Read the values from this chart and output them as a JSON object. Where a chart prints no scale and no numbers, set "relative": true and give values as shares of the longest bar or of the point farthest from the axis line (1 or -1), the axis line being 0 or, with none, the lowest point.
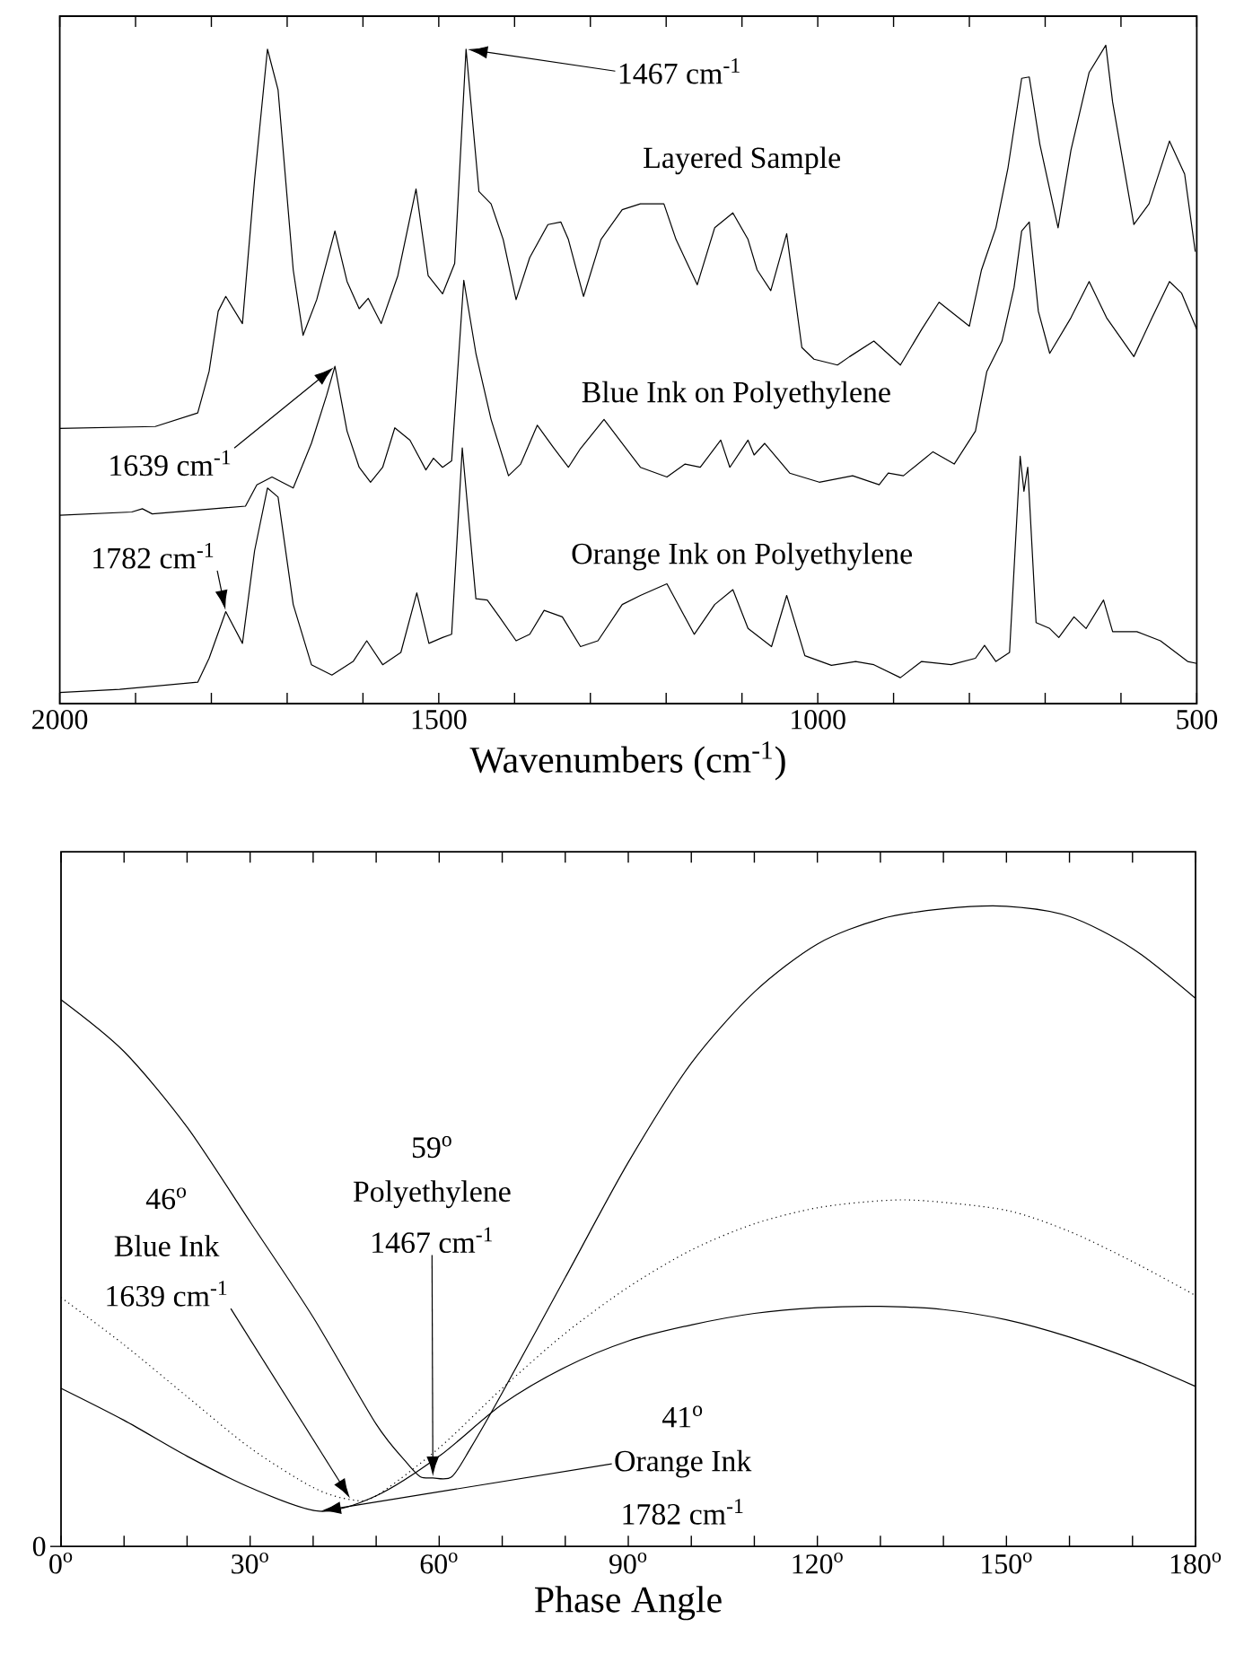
{
  "chart_data": [
    {
      "type": "line",
      "relative": true,
      "tick_labels": "x",
      "xlabel": "Wavenumbers (cm$^{-1}$)",
      "xlim": [
        2000,
        500
      ],
      "xticks": [
        2000,
        {
          "value": 1900,
          "label": null
        },
        {
          "value": 1800,
          "label": null
        },
        {
          "value": 1700,
          "label": null
        },
        {
          "value": 1600,
          "label": null
        },
        1500,
        {
          "value": 1400,
          "label": null
        },
        {
          "value": 1300,
          "label": null
        },
        {
          "value": 1200,
          "label": null
        },
        {
          "value": 1100,
          "label": null
        },
        1000,
        {
          "value": 900,
          "label": null
        },
        {
          "value": 800,
          "label": null
        },
        {
          "value": 700,
          "label": null
        },
        {
          "value": 600,
          "label": null
        },
        500
      ],
      "series": [
        {
          "name": "Layered Sample",
          "color": "#000000",
          "x": [
            2000,
            1874,
            1818,
            1803,
            1791,
            1781,
            1759,
            1743,
            1726,
            1712,
            1692,
            1679,
            1661,
            1637,
            1621,
            1605,
            1593,
            1576,
            1554,
            1530,
            1514,
            1495,
            1479,
            1464,
            1447,
            1431,
            1415,
            1398,
            1380,
            1356,
            1339,
            1329,
            1309,
            1286,
            1258,
            1234,
            1203,
            1187,
            1159,
            1136,
            1112,
            1092,
            1080,
            1062,
            1041,
            1021,
            1005,
            974,
            958,
            926,
            891,
            863,
            840,
            800,
            784,
            765,
            749,
            731,
            721,
            707,
            683,
            666,
            642,
            620,
            611,
            583,
            563,
            536,
            516,
            502
          ],
          "values": [
            0.408,
            0.411,
            0.432,
            0.496,
            0.589,
            0.612,
            0.57,
            0.792,
            0.994,
            0.931,
            0.653,
            0.552,
            0.607,
            0.713,
            0.635,
            0.593,
            0.609,
            0.57,
            0.644,
            0.778,
            0.644,
            0.616,
            0.663,
            0.994,
            0.774,
            0.755,
            0.7,
            0.607,
            0.672,
            0.723,
            0.727,
            0.7,
            0.612,
            0.7,
            0.746,
            0.755,
            0.755,
            0.7,
            0.63,
            0.718,
            0.741,
            0.7,
            0.653,
            0.621,
            0.709,
            0.533,
            0.515,
            0.506,
            0.519,
            0.543,
            0.506,
            0.561,
            0.603,
            0.566,
            0.653,
            0.718,
            0.811,
            0.949,
            0.951,
            0.847,
            0.718,
            0.838,
            0.958,
            1.0,
            0.912,
            0.723,
            0.755,
            0.852,
            0.801,
            0.681
          ]
        },
        {
          "name": "Blue Ink on Polyethylene",
          "color": "#000000",
          "x": [
            2000,
            1905,
            1891,
            1878,
            1755,
            1740,
            1720,
            1692,
            1668,
            1648,
            1637,
            1621,
            1605,
            1590,
            1574,
            1558,
            1538,
            1517,
            1507,
            1495,
            1483,
            1467,
            1451,
            1431,
            1408,
            1392,
            1370,
            1349,
            1329,
            1313,
            1282,
            1258,
            1234,
            1199,
            1175,
            1155,
            1128,
            1116,
            1092,
            1084,
            1070,
            1037,
            998,
            954,
            919,
            907,
            887,
            848,
            820,
            792,
            777,
            757,
            741,
            731,
            721,
            709,
            694,
            666,
            642,
            619,
            583,
            559,
            536,
            520,
            500
          ],
          "values": [
            0.274,
            0.279,
            0.284,
            0.276,
            0.288,
            0.321,
            0.333,
            0.316,
            0.385,
            0.459,
            0.504,
            0.404,
            0.348,
            0.325,
            0.348,
            0.409,
            0.39,
            0.344,
            0.362,
            0.348,
            0.358,
            0.637,
            0.524,
            0.422,
            0.335,
            0.353,
            0.413,
            0.379,
            0.348,
            0.377,
            0.422,
            0.385,
            0.348,
            0.333,
            0.353,
            0.348,
            0.39,
            0.348,
            0.39,
            0.367,
            0.385,
            0.339,
            0.325,
            0.335,
            0.321,
            0.339,
            0.335,
            0.372,
            0.353,
            0.404,
            0.496,
            0.543,
            0.626,
            0.713,
            0.727,
            0.589,
            0.524,
            0.579,
            0.635,
            0.579,
            0.519,
            0.579,
            0.635,
            0.617,
            0.561
          ]
        },
        {
          "name": "Orange Ink on Polyethylene",
          "color": "#000000",
          "x": [
            2000,
            1921,
            1818,
            1803,
            1781,
            1759,
            1743,
            1726,
            1712,
            1692,
            1668,
            1641,
            1613,
            1595,
            1574,
            1550,
            1529,
            1513,
            1495,
            1483,
            1469,
            1451,
            1436,
            1420,
            1398,
            1380,
            1361,
            1337,
            1313,
            1290,
            1258,
            1234,
            1199,
            1163,
            1136,
            1112,
            1092,
            1061,
            1041,
            1017,
            982,
            950,
            926,
            891,
            863,
            824,
            792,
            780,
            765,
            747,
            733,
            728,
            723,
            712,
            694,
            682,
            662,
            646,
            623,
            611,
            579,
            548,
            512,
            500
          ],
          "values": [
            0.0,
            0.005,
            0.016,
            0.053,
            0.125,
            0.076,
            0.219,
            0.316,
            0.302,
            0.136,
            0.043,
            0.027,
            0.048,
            0.08,
            0.043,
            0.062,
            0.154,
            0.076,
            0.085,
            0.09,
            0.378,
            0.145,
            0.143,
            0.117,
            0.08,
            0.09,
            0.127,
            0.117,
            0.071,
            0.08,
            0.136,
            0.15,
            0.168,
            0.09,
            0.136,
            0.159,
            0.099,
            0.071,
            0.15,
            0.057,
            0.042,
            0.048,
            0.043,
            0.023,
            0.048,
            0.043,
            0.053,
            0.073,
            0.048,
            0.062,
            0.365,
            0.311,
            0.348,
            0.108,
            0.099,
            0.085,
            0.117,
            0.099,
            0.143,
            0.094,
            0.094,
            0.08,
            0.048,
            0.045
          ]
        }
      ],
      "annotations": [
        "1467 cm$^{-1}$",
        "1639 cm$^{-1}$",
        "1782 cm$^{-1}$"
      ]
    },
    {
      "type": "line",
      "relative": true,
      "tick_labels": "x",
      "xlabel": "Phase Angle",
      "xlim": [
        0,
        180
      ],
      "xticks": [
        {
          "value": 0,
          "label": "0$^{o}$"
        },
        {
          "value": 10,
          "label": null
        },
        {
          "value": 20,
          "label": null
        },
        {
          "value": 30,
          "label": "30$^{o}$"
        },
        {
          "value": 40,
          "label": null
        },
        {
          "value": 50,
          "label": null
        },
        {
          "value": 60,
          "label": "60$^{o}$"
        },
        {
          "value": 70,
          "label": null
        },
        {
          "value": 80,
          "label": null
        },
        {
          "value": 90,
          "label": "90$^{o}$"
        },
        {
          "value": 100,
          "label": null
        },
        {
          "value": 110,
          "label": null
        },
        {
          "value": 120,
          "label": "120$^{o}$"
        },
        {
          "value": 130,
          "label": null
        },
        {
          "value": 140,
          "label": null
        },
        {
          "value": 150,
          "label": "150$^{o}$"
        },
        {
          "value": 160,
          "label": null
        },
        {
          "value": 170,
          "label": null
        },
        {
          "value": 180,
          "label": "180$^{o}$"
        }
      ],
      "series": [
        {
          "color": "#000000",
          "x": [
            0,
            10,
            20,
            30,
            40,
            50,
            55,
            57,
            59,
            62,
            65,
            70,
            80,
            90,
            100,
            110,
            120,
            130,
            140,
            150,
            160,
            170,
            180
          ],
          "values": [
            0.854,
            0.773,
            0.655,
            0.507,
            0.358,
            0.191,
            0.129,
            0.109,
            0.107,
            0.109,
            0.154,
            0.24,
            0.42,
            0.6,
            0.755,
            0.866,
            0.941,
            0.98,
            0.996,
            1.0,
            0.984,
            0.934,
            0.856
          ]
        },
        {
          "color": "#000000",
          "line_style": "dotted",
          "x": [
            0,
            10,
            20,
            30,
            40,
            46,
            50,
            60,
            70,
            80,
            90,
            100,
            110,
            120,
            130,
            137,
            150,
            160,
            170,
            180
          ],
          "values": [
            0.389,
            0.315,
            0.234,
            0.154,
            0.092,
            0.073,
            0.079,
            0.154,
            0.247,
            0.333,
            0.405,
            0.463,
            0.504,
            0.529,
            0.54,
            0.54,
            0.525,
            0.492,
            0.445,
            0.392
          ]
        },
        {
          "color": "#000000",
          "x": [
            0,
            10,
            20,
            30,
            41,
            50,
            60,
            70,
            80,
            90,
            100,
            110,
            120,
            130,
            140,
            150,
            160,
            170,
            180
          ],
          "values": [
            0.247,
            0.197,
            0.141,
            0.092,
            0.055,
            0.079,
            0.141,
            0.222,
            0.28,
            0.321,
            0.346,
            0.364,
            0.373,
            0.375,
            0.37,
            0.354,
            0.327,
            0.292,
            0.25
          ]
        }
      ],
      "annotations": [
        "0",
        "59$^{o}$",
        "Polyethylene",
        "1467 cm$^{-1}$",
        "46$^{o}$",
        "Blue Ink",
        "1639 cm$^{-1}$",
        "41$^{o}$",
        "Orange Ink",
        "1782 cm$^{-1}$"
      ]
    }
  ]
}
